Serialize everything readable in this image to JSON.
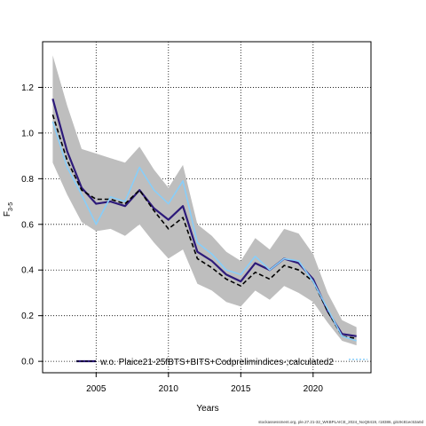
{
  "chart_data": {
    "type": "line",
    "xlabel": "Years",
    "ylabel": "F",
    "ylabel_sub": "3-5",
    "xlim": [
      2001.3,
      2024.0
    ],
    "ylim": [
      -0.05,
      1.4
    ],
    "x_ticks": [
      2005,
      2010,
      2015,
      2020
    ],
    "y_ticks": [
      0.0,
      0.2,
      0.4,
      0.6,
      0.8,
      1.0,
      1.2
    ],
    "y_tick_labels": [
      "0.0",
      "0.2",
      "0.4",
      "0.6",
      "0.8",
      "1.0",
      "1.2"
    ],
    "grid": true,
    "legend_position": "bottom",
    "x": [
      2002,
      2003,
      2004,
      2005,
      2006,
      2007,
      2008,
      2009,
      2010,
      2011,
      2012,
      2013,
      2014,
      2015,
      2016,
      2017,
      2018,
      2019,
      2020,
      2021,
      2022,
      2023
    ],
    "band": {
      "color": "#bebebe",
      "upper": [
        1.34,
        1.12,
        0.93,
        0.91,
        0.89,
        0.87,
        0.94,
        0.84,
        0.76,
        0.86,
        0.6,
        0.55,
        0.48,
        0.44,
        0.54,
        0.49,
        0.58,
        0.56,
        0.47,
        0.3,
        0.18,
        0.15
      ],
      "lower": [
        0.87,
        0.73,
        0.61,
        0.57,
        0.58,
        0.55,
        0.6,
        0.52,
        0.45,
        0.49,
        0.34,
        0.31,
        0.26,
        0.24,
        0.31,
        0.27,
        0.33,
        0.3,
        0.26,
        0.17,
        0.09,
        0.07
      ]
    },
    "series": [
      {
        "values": [
          1.15,
          0.92,
          0.76,
          0.69,
          0.7,
          0.68,
          0.75,
          0.67,
          0.62,
          0.68,
          0.48,
          0.44,
          0.38,
          0.35,
          0.43,
          0.4,
          0.45,
          0.43,
          0.36,
          0.22,
          0.12,
          0.11
        ],
        "color": "#2d1a7a",
        "width": 2.2,
        "dash": "none"
      },
      {
        "values": [
          1.08,
          0.88,
          0.75,
          0.71,
          0.71,
          0.69,
          0.75,
          0.66,
          0.58,
          0.63,
          0.45,
          0.41,
          0.36,
          0.33,
          0.39,
          0.36,
          0.42,
          0.4,
          0.35,
          0.22,
          0.11,
          0.1
        ],
        "color": "#000000",
        "width": 1.6,
        "dash": "5,3"
      },
      {
        "values": [
          1.05,
          0.85,
          0.73,
          0.6,
          0.72,
          0.7,
          0.85,
          0.75,
          0.69,
          0.79,
          0.52,
          0.47,
          0.4,
          0.38,
          0.46,
          0.4,
          0.45,
          0.44,
          0.35,
          0.23,
          0.11,
          0.09
        ],
        "color": "#87cefa",
        "width": 1.6,
        "dash": "none"
      }
    ],
    "legend": {
      "label": "w.o. Plaice21-25fBTS+BITS+Codprelimindices-;calculated2"
    }
  },
  "footer": {
    "text": "stockassessment.org, ple.27.21-32_WKBPLAICE_2024_NoQ8419, r18386, gitc9c81ec53a0d"
  }
}
